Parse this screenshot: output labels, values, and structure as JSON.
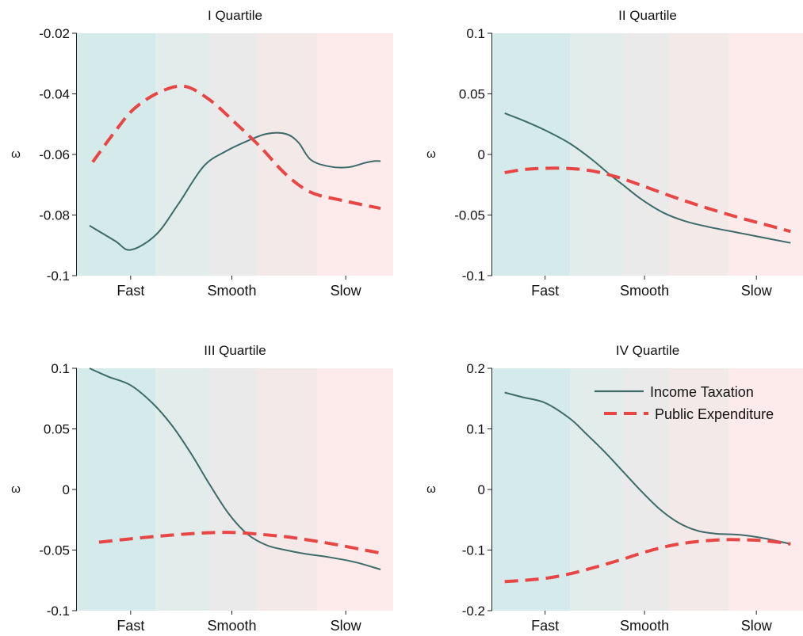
{
  "colors": {
    "income": "#3d6b68",
    "public": "#e84545",
    "bands": [
      "#d5eaea",
      "#e2eceb",
      "#ebeaea",
      "#f4e9e9",
      "#fdeaea"
    ]
  },
  "legend": {
    "income_label": "Income Taxation",
    "public_label": "Public Expenditure",
    "placement": "top-right of IV Quartile panel"
  },
  "chart_data": [
    {
      "type": "line",
      "title": "I Quartile",
      "ylabel": "ω",
      "categories": [
        "Fast",
        "Smooth",
        "Slow"
      ],
      "xlim": [
        0,
        1
      ],
      "category_positions": [
        0.17,
        0.49,
        0.85
      ],
      "bands": [
        0,
        0.25,
        0.42,
        0.57,
        0.76,
        1
      ],
      "ylim": [
        -0.1,
        -0.02
      ],
      "yticks": [
        -0.02,
        -0.04,
        -0.06,
        -0.08,
        -0.1
      ],
      "ytick_labels": [
        "-0.02",
        "-0.04",
        "-0.06",
        "-0.08",
        "-0.1"
      ],
      "series": [
        {
          "name": "Income Taxation",
          "x": [
            0.04,
            0.12,
            0.17,
            0.25,
            0.32,
            0.4,
            0.47,
            0.54,
            0.6,
            0.66,
            0.7,
            0.74,
            0.8,
            0.86,
            0.91,
            0.94,
            0.96
          ],
          "y": [
            -0.0835,
            -0.0885,
            -0.0915,
            -0.0865,
            -0.0765,
            -0.064,
            -0.059,
            -0.0555,
            -0.0532,
            -0.0532,
            -0.056,
            -0.0618,
            -0.064,
            -0.0642,
            -0.0628,
            -0.0622,
            -0.0622
          ]
        },
        {
          "name": "Public Expenditure",
          "x": [
            0.05,
            0.12,
            0.18,
            0.26,
            0.34,
            0.42,
            0.5,
            0.58,
            0.66,
            0.74,
            0.84,
            0.96
          ],
          "y": [
            -0.0625,
            -0.0525,
            -0.045,
            -0.0395,
            -0.0375,
            -0.042,
            -0.0495,
            -0.0575,
            -0.0665,
            -0.0725,
            -0.0752,
            -0.0778
          ]
        }
      ]
    },
    {
      "type": "line",
      "title": "II Quartile",
      "ylabel": "ω",
      "categories": [
        "Fast",
        "Smooth",
        "Slow"
      ],
      "xlim": [
        0,
        1
      ],
      "category_positions": [
        0.17,
        0.49,
        0.85
      ],
      "bands": [
        0,
        0.25,
        0.42,
        0.57,
        0.76,
        1
      ],
      "ylim": [
        -0.1,
        0.1
      ],
      "yticks": [
        0.1,
        0.05,
        0,
        -0.05,
        -0.1
      ],
      "ytick_labels": [
        "0.1",
        "0.05",
        "0",
        "-0.05",
        "-0.1"
      ],
      "series": [
        {
          "name": "Income Taxation",
          "x": [
            0.04,
            0.1,
            0.17,
            0.25,
            0.32,
            0.38,
            0.42,
            0.48,
            0.55,
            0.62,
            0.7,
            0.8,
            0.9,
            0.96
          ],
          "y": [
            0.034,
            0.028,
            0.02,
            0.009,
            -0.004,
            -0.017,
            -0.025,
            -0.037,
            -0.048,
            -0.055,
            -0.06,
            -0.065,
            -0.07,
            -0.073
          ]
        },
        {
          "name": "Public Expenditure",
          "x": [
            0.04,
            0.1,
            0.16,
            0.24,
            0.32,
            0.4,
            0.48,
            0.56,
            0.64,
            0.72,
            0.8,
            0.88,
            0.96
          ],
          "y": [
            -0.015,
            -0.0125,
            -0.0115,
            -0.0115,
            -0.0135,
            -0.0185,
            -0.0255,
            -0.033,
            -0.04,
            -0.0465,
            -0.0525,
            -0.058,
            -0.0635
          ]
        }
      ]
    },
    {
      "type": "line",
      "title": "III Quartile",
      "ylabel": "ω",
      "categories": [
        "Fast",
        "Smooth",
        "Slow"
      ],
      "xlim": [
        0,
        1
      ],
      "category_positions": [
        0.17,
        0.49,
        0.85
      ],
      "bands": [
        0,
        0.25,
        0.42,
        0.57,
        0.76,
        1
      ],
      "ylim": [
        -0.1,
        0.1
      ],
      "yticks": [
        0.1,
        0.05,
        0,
        -0.05,
        -0.1
      ],
      "ytick_labels": [
        "0.1",
        "0.05",
        "0",
        "-0.05",
        "-0.1"
      ],
      "series": [
        {
          "name": "Income Taxation",
          "x": [
            0.04,
            0.1,
            0.17,
            0.24,
            0.3,
            0.36,
            0.42,
            0.48,
            0.54,
            0.6,
            0.66,
            0.72,
            0.8,
            0.88,
            0.96
          ],
          "y": [
            0.1,
            0.093,
            0.086,
            0.071,
            0.053,
            0.03,
            0.004,
            -0.02,
            -0.037,
            -0.046,
            -0.05,
            -0.053,
            -0.056,
            -0.06,
            -0.066
          ]
        },
        {
          "name": "Public Expenditure",
          "x": [
            0.07,
            0.16,
            0.26,
            0.36,
            0.44,
            0.5,
            0.58,
            0.66,
            0.74,
            0.82,
            0.9,
            0.96
          ],
          "y": [
            -0.0435,
            -0.041,
            -0.0385,
            -0.0365,
            -0.0355,
            -0.0355,
            -0.037,
            -0.039,
            -0.042,
            -0.0455,
            -0.0495,
            -0.0525
          ]
        }
      ]
    },
    {
      "type": "line",
      "title": "IV Quartile",
      "ylabel": "ω",
      "categories": [
        "Fast",
        "Smooth",
        "Slow"
      ],
      "xlim": [
        0,
        1
      ],
      "category_positions": [
        0.17,
        0.49,
        0.85
      ],
      "bands": [
        0,
        0.25,
        0.42,
        0.57,
        0.76,
        1
      ],
      "ylim": [
        -0.2,
        0.2
      ],
      "yticks": [
        0.2,
        0.1,
        0,
        -0.1,
        -0.2
      ],
      "ytick_labels": [
        "0.2",
        "0.1",
        "0",
        "-0.1",
        "-0.2"
      ],
      "series": [
        {
          "name": "Income Taxation",
          "x": [
            0.04,
            0.1,
            0.17,
            0.25,
            0.3,
            0.36,
            0.42,
            0.48,
            0.54,
            0.6,
            0.66,
            0.72,
            0.8,
            0.88,
            0.96
          ],
          "y": [
            0.16,
            0.152,
            0.143,
            0.117,
            0.093,
            0.063,
            0.03,
            -0.003,
            -0.033,
            -0.055,
            -0.068,
            -0.073,
            -0.075,
            -0.081,
            -0.09
          ]
        },
        {
          "name": "Public Expenditure",
          "x": [
            0.04,
            0.1,
            0.18,
            0.26,
            0.34,
            0.42,
            0.5,
            0.58,
            0.66,
            0.74,
            0.8,
            0.86,
            0.92,
            0.96
          ],
          "y": [
            -0.152,
            -0.15,
            -0.146,
            -0.138,
            -0.127,
            -0.115,
            -0.102,
            -0.092,
            -0.086,
            -0.083,
            -0.083,
            -0.084,
            -0.087,
            -0.09
          ]
        }
      ]
    }
  ]
}
